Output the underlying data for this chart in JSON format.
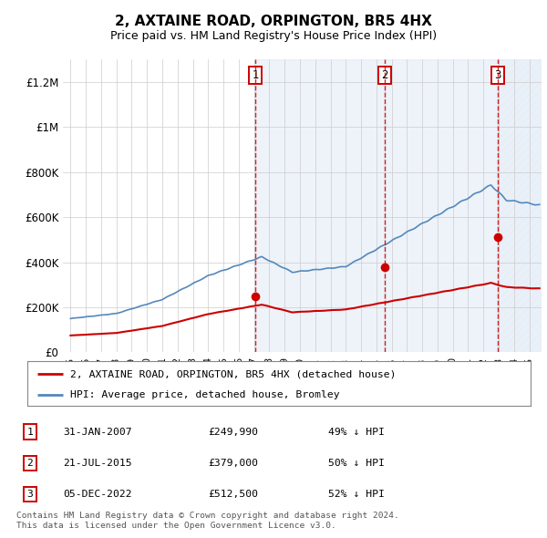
{
  "title": "2, AXTAINE ROAD, ORPINGTON, BR5 4HX",
  "subtitle": "Price paid vs. HM Land Registry's House Price Index (HPI)",
  "ylim": [
    0,
    1300000
  ],
  "yticks": [
    0,
    200000,
    400000,
    600000,
    800000,
    1000000,
    1200000
  ],
  "ytick_labels": [
    "£0",
    "£200K",
    "£400K",
    "£600K",
    "£800K",
    "£1M",
    "£1.2M"
  ],
  "red_color": "#cc0000",
  "blue_color": "#5588bb",
  "blue_fill_color": "#dde8f5",
  "sale_dates_num": [
    2007.08,
    2015.55,
    2022.92
  ],
  "sale_prices": [
    249990,
    379000,
    512500
  ],
  "sale_labels": [
    "1",
    "2",
    "3"
  ],
  "legend_red_label": "2, AXTAINE ROAD, ORPINGTON, BR5 4HX (detached house)",
  "legend_blue_label": "HPI: Average price, detached house, Bromley",
  "table_data": [
    [
      "1",
      "31-JAN-2007",
      "£249,990",
      "49% ↓ HPI"
    ],
    [
      "2",
      "21-JUL-2015",
      "£379,000",
      "50% ↓ HPI"
    ],
    [
      "3",
      "05-DEC-2022",
      "£512,500",
      "52% ↓ HPI"
    ]
  ],
  "footnote1": "Contains HM Land Registry data © Crown copyright and database right 2024.",
  "footnote2": "This data is licensed under the Open Government Licence v3.0.",
  "xmin": 1994.5,
  "xmax": 2025.8,
  "xtick_start": 1995,
  "xtick_end": 2025
}
